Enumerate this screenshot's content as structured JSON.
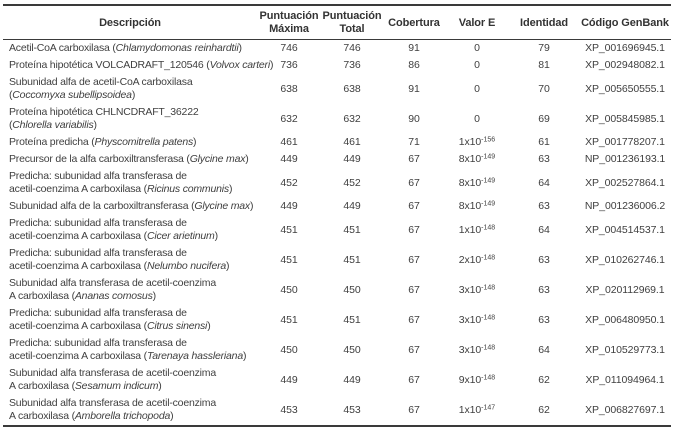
{
  "colors": {
    "text": "#3f3f3f",
    "header_text": "#333333",
    "rule_dark": "#3a3a3a",
    "background": "#ffffff"
  },
  "table": {
    "headers": [
      {
        "key": "descripcion",
        "lines": [
          "Descripción"
        ]
      },
      {
        "key": "puntuacion-maxima",
        "lines": [
          "Puntuación",
          "Máxima"
        ]
      },
      {
        "key": "puntuacion-total",
        "lines": [
          "Puntuación",
          "Total"
        ]
      },
      {
        "key": "cobertura",
        "lines": [
          "Cobertura"
        ]
      },
      {
        "key": "valor-e",
        "lines": [
          "Valor E"
        ]
      },
      {
        "key": "identidad",
        "lines": [
          "Identidad"
        ]
      },
      {
        "key": "codigo-genbank",
        "lines": [
          "Código GenBank"
        ]
      }
    ],
    "rows": [
      {
        "description_lines": [
          [
            {
              "t": "Acetil-CoA carboxilasa (",
              "italic": false
            },
            {
              "t": "Chlamydomonas reinhardtii",
              "italic": true
            },
            {
              "t": ")",
              "italic": false
            }
          ]
        ],
        "max_score": "746",
        "total_score": "746",
        "coverage": "91",
        "evalue": {
          "base": "0"
        },
        "identity": "79",
        "genbank": "XP_001696945.1"
      },
      {
        "description_lines": [
          [
            {
              "t": "Proteína hipotética VOLCADRAFT_120546 (",
              "italic": false
            },
            {
              "t": "Volvox carteri",
              "italic": true
            },
            {
              "t": ")",
              "italic": false
            }
          ]
        ],
        "max_score": "736",
        "total_score": "736",
        "coverage": "86",
        "evalue": {
          "base": "0"
        },
        "identity": "81",
        "genbank": "XP_002948082.1"
      },
      {
        "description_lines": [
          [
            {
              "t": "Subunidad alfa de acetil-CoA carboxilasa",
              "italic": false
            }
          ],
          [
            {
              "t": "(",
              "italic": false
            },
            {
              "t": "Coccomyxa subellipsoidea",
              "italic": true
            },
            {
              "t": ")",
              "italic": false
            }
          ]
        ],
        "max_score": "638",
        "total_score": "638",
        "coverage": "91",
        "evalue": {
          "base": "0"
        },
        "identity": "70",
        "genbank": "XP_005650555.1"
      },
      {
        "description_lines": [
          [
            {
              "t": "Proteína hipotética CHLNCDRAFT_36222",
              "italic": false
            }
          ],
          [
            {
              "t": "(",
              "italic": false
            },
            {
              "t": "Chlorella variabilis",
              "italic": true
            },
            {
              "t": ")",
              "italic": false
            }
          ]
        ],
        "max_score": "632",
        "total_score": "632",
        "coverage": "90",
        "evalue": {
          "base": "0"
        },
        "identity": "69",
        "genbank": "XP_005845985.1"
      },
      {
        "description_lines": [
          [
            {
              "t": "Proteína predicha (",
              "italic": false
            },
            {
              "t": "Physcomitrella patens",
              "italic": true
            },
            {
              "t": ")",
              "italic": false
            }
          ]
        ],
        "max_score": "461",
        "total_score": "461",
        "coverage": "71",
        "evalue": {
          "base": "1x10",
          "exp": "-156"
        },
        "identity": "61",
        "genbank": "XP_001778207.1"
      },
      {
        "description_lines": [
          [
            {
              "t": "Precursor de la alfa carboxiltransferasa (",
              "italic": false
            },
            {
              "t": "Glycine max",
              "italic": true
            },
            {
              "t": ")",
              "italic": false
            }
          ]
        ],
        "max_score": "449",
        "total_score": "449",
        "coverage": "67",
        "evalue": {
          "base": "8x10",
          "exp": "-149"
        },
        "identity": "63",
        "genbank": "NP_001236193.1"
      },
      {
        "description_lines": [
          [
            {
              "t": "Predicha: subunidad alfa transferasa de",
              "italic": false
            }
          ],
          [
            {
              "t": "acetil-coenzima A carboxilasa (",
              "italic": false
            },
            {
              "t": "Ricinus communis",
              "italic": true
            },
            {
              "t": ")",
              "italic": false
            }
          ]
        ],
        "max_score": "452",
        "total_score": "452",
        "coverage": "67",
        "evalue": {
          "base": "8x10",
          "exp": "-149"
        },
        "identity": "64",
        "genbank": "XP_002527864.1"
      },
      {
        "description_lines": [
          [
            {
              "t": "Subunidad alfa de la carboxiltransferasa (",
              "italic": false
            },
            {
              "t": "Glycine max",
              "italic": true
            },
            {
              "t": ")",
              "italic": false
            }
          ]
        ],
        "max_score": "449",
        "total_score": "449",
        "coverage": "67",
        "evalue": {
          "base": "8x10",
          "exp": "-149"
        },
        "identity": "63",
        "genbank": "NP_001236006.2"
      },
      {
        "description_lines": [
          [
            {
              "t": "Predicha: subunidad alfa transferasa de",
              "italic": false
            }
          ],
          [
            {
              "t": "acetil-coenzima A carboxilasa (",
              "italic": false
            },
            {
              "t": "Cicer arietinum",
              "italic": true
            },
            {
              "t": ")",
              "italic": false
            }
          ]
        ],
        "max_score": "451",
        "total_score": "451",
        "coverage": "67",
        "evalue": {
          "base": "1x10",
          "exp": "-148"
        },
        "identity": "64",
        "genbank": "XP_004514537.1"
      },
      {
        "description_lines": [
          [
            {
              "t": "Predicha: subunidad alfa transferasa de",
              "italic": false
            }
          ],
          [
            {
              "t": "acetil-coenzima A carboxilasa (",
              "italic": false
            },
            {
              "t": "Nelumbo nucifera",
              "italic": true
            },
            {
              "t": ")",
              "italic": false
            }
          ]
        ],
        "max_score": "451",
        "total_score": "451",
        "coverage": "67",
        "evalue": {
          "base": "2x10",
          "exp": "-148"
        },
        "identity": "63",
        "genbank": "XP_010262746.1"
      },
      {
        "description_lines": [
          [
            {
              "t": "Subunidad alfa transferasa de acetil-coenzima",
              "italic": false
            }
          ],
          [
            {
              "t": "A carboxilasa (",
              "italic": false
            },
            {
              "t": "Ananas comosus",
              "italic": true
            },
            {
              "t": ")",
              "italic": false
            }
          ]
        ],
        "max_score": "450",
        "total_score": "450",
        "coverage": "67",
        "evalue": {
          "base": "3x10",
          "exp": "-148"
        },
        "identity": "63",
        "genbank": "XP_020112969.1"
      },
      {
        "description_lines": [
          [
            {
              "t": "Predicha: subunidad alfa transferasa de",
              "italic": false
            }
          ],
          [
            {
              "t": "acetil-coenzima A carboxilasa (",
              "italic": false
            },
            {
              "t": "Citrus sinensi",
              "italic": true
            },
            {
              "t": ")",
              "italic": false
            }
          ]
        ],
        "max_score": "451",
        "total_score": "451",
        "coverage": "67",
        "evalue": {
          "base": "3x10",
          "exp": "-148"
        },
        "identity": "63",
        "genbank": "XP_006480950.1"
      },
      {
        "description_lines": [
          [
            {
              "t": "Predicha: subunidad alfa transferasa de",
              "italic": false
            }
          ],
          [
            {
              "t": "acetil-coenzima A carboxilasa (",
              "italic": false
            },
            {
              "t": "Tarenaya hassleriana",
              "italic": true
            },
            {
              "t": ")",
              "italic": false
            }
          ]
        ],
        "max_score": "450",
        "total_score": "450",
        "coverage": "67",
        "evalue": {
          "base": "3x10",
          "exp": "-148"
        },
        "identity": "64",
        "genbank": "XP_010529773.1"
      },
      {
        "description_lines": [
          [
            {
              "t": "Subunidad alfa transferasa de acetil-coenzima",
              "italic": false
            }
          ],
          [
            {
              "t": "A carboxilasa (",
              "italic": false
            },
            {
              "t": "Sesamum indicum",
              "italic": true
            },
            {
              "t": ")",
              "italic": false
            }
          ]
        ],
        "max_score": "449",
        "total_score": "449",
        "coverage": "67",
        "evalue": {
          "base": "9x10",
          "exp": "-148"
        },
        "identity": "62",
        "genbank": "XP_011094964.1"
      },
      {
        "description_lines": [
          [
            {
              "t": "Subunidad alfa transferasa de acetil-coenzima",
              "italic": false
            }
          ],
          [
            {
              "t": "A carboxilasa (",
              "italic": false
            },
            {
              "t": "Amborella trichopoda",
              "italic": true
            },
            {
              "t": ")",
              "italic": false
            }
          ]
        ],
        "max_score": "453",
        "total_score": "453",
        "coverage": "67",
        "evalue": {
          "base": "1x10",
          "exp": "-147"
        },
        "identity": "62",
        "genbank": "XP_006827697.1"
      }
    ]
  }
}
